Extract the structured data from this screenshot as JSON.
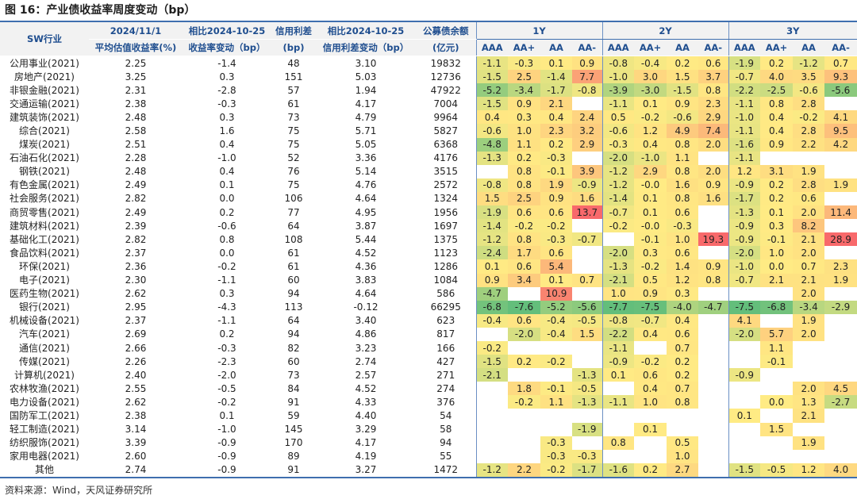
{
  "title": "图 16：产业债收益率周度变动（bp）",
  "source": "资料来源：Wind，天风证券研究所",
  "headers": {
    "sw": "SW行业",
    "date_top": "2024/11/1",
    "date_bottom": "平均估值收益率(%)",
    "chg_top": "相比2024-10-25",
    "chg_bottom": "收益率变动（bp）",
    "spread_top": "信用利差",
    "spread_bottom": "(bp)",
    "spreadchg_top": "相比2024-10-25",
    "spreadchg_bottom": "信用利差变动（bp）",
    "issue_top": "公募债余额",
    "issue_bottom": "(亿元)",
    "groups": [
      "1Y",
      "2Y",
      "3Y"
    ],
    "ratings": [
      "AAA",
      "AA+",
      "AA",
      "AA-"
    ]
  },
  "rows": [
    {
      "name": "公用事业(2021)",
      "yield": "2.25",
      "chg": "-1.4",
      "spread": "48",
      "spreadchg": "3.10",
      "bal": "19832",
      "y1": [
        "-1.1",
        "-0.3",
        "0.1",
        "0.9"
      ],
      "y2": [
        "-0.8",
        "-0.4",
        "0.2",
        "0.6"
      ],
      "y3": [
        "-1.9",
        "0.2",
        "-1.2",
        "0.7"
      ]
    },
    {
      "name": "房地产(2021)",
      "yield": "3.25",
      "chg": "0.3",
      "spread": "151",
      "spreadchg": "5.03",
      "bal": "12736",
      "y1": [
        "-1.5",
        "2.5",
        "-1.4",
        "7.7"
      ],
      "y2": [
        "-1.0",
        "3.0",
        "1.5",
        "3.7"
      ],
      "y3": [
        "-0.7",
        "4.0",
        "3.5",
        "9.3"
      ]
    },
    {
      "name": "非银金融(2021)",
      "yield": "2.31",
      "chg": "-2.8",
      "spread": "57",
      "spreadchg": "1.94",
      "bal": "47922",
      "y1": [
        "-5.2",
        "-3.4",
        "-1.7",
        "-0.8"
      ],
      "y2": [
        "-3.9",
        "-3.0",
        "-1.5",
        "0.8"
      ],
      "y3": [
        "-2.2",
        "-2.5",
        "-0.6",
        "-5.6"
      ]
    },
    {
      "name": "交通运输(2021)",
      "yield": "2.38",
      "chg": "-0.3",
      "spread": "61",
      "spreadchg": "4.17",
      "bal": "7004",
      "y1": [
        "-1.5",
        "0.9",
        "2.1",
        ""
      ],
      "y2": [
        "-1.1",
        "0.1",
        "0.9",
        "2.3"
      ],
      "y3": [
        "-1.1",
        "0.8",
        "2.8",
        ""
      ]
    },
    {
      "name": "建筑装饰(2021)",
      "yield": "2.48",
      "chg": "0.3",
      "spread": "73",
      "spreadchg": "4.79",
      "bal": "9964",
      "y1": [
        "0.4",
        "0.3",
        "0.4",
        "2.4"
      ],
      "y2": [
        "0.5",
        "-0.2",
        "-0.6",
        "2.9"
      ],
      "y3": [
        "-1.0",
        "0.4",
        "-0.2",
        "4.1"
      ]
    },
    {
      "name": "综合(2021)",
      "yield": "2.58",
      "chg": "1.6",
      "spread": "75",
      "spreadchg": "5.71",
      "bal": "5827",
      "y1": [
        "-0.6",
        "1.0",
        "2.3",
        "3.2"
      ],
      "y2": [
        "-0.6",
        "1.2",
        "4.9",
        "7.4"
      ],
      "y3": [
        "-1.1",
        "0.4",
        "2.8",
        "9.5"
      ]
    },
    {
      "name": "煤炭(2021)",
      "yield": "2.51",
      "chg": "0.4",
      "spread": "75",
      "spreadchg": "5.05",
      "bal": "6368",
      "y1": [
        "-4.8",
        "1.1",
        "0.2",
        "2.9"
      ],
      "y2": [
        "-0.3",
        "0.4",
        "0.8",
        "2.0"
      ],
      "y3": [
        "-1.6",
        "0.9",
        "2.2",
        "4.2"
      ]
    },
    {
      "name": "石油石化(2021)",
      "yield": "2.28",
      "chg": "-1.0",
      "spread": "52",
      "spreadchg": "3.36",
      "bal": "4176",
      "y1": [
        "-1.3",
        "0.2",
        "-0.3",
        ""
      ],
      "y2": [
        "-2.0",
        "-1.0",
        "1.1",
        ""
      ],
      "y3": [
        "-1.1",
        "",
        "",
        ""
      ]
    },
    {
      "name": "钢铁(2021)",
      "yield": "2.48",
      "chg": "0.4",
      "spread": "76",
      "spreadchg": "5.14",
      "bal": "3515",
      "y1": [
        "",
        "0.8",
        "-0.1",
        "3.9"
      ],
      "y2": [
        "-1.2",
        "2.9",
        "0.8",
        "2.0"
      ],
      "y3": [
        "1.2",
        "3.1",
        "1.9",
        ""
      ]
    },
    {
      "name": "有色金属(2021)",
      "yield": "2.49",
      "chg": "0.1",
      "spread": "75",
      "spreadchg": "4.76",
      "bal": "2572",
      "y1": [
        "-0.8",
        "0.8",
        "1.9",
        "-0.9"
      ],
      "y2": [
        "-1.2",
        "-0.0",
        "1.6",
        "0.9"
      ],
      "y3": [
        "-0.9",
        "0.2",
        "2.8",
        "1.9"
      ]
    },
    {
      "name": "社会服务(2021)",
      "yield": "2.82",
      "chg": "0.0",
      "spread": "106",
      "spreadchg": "4.64",
      "bal": "1324",
      "y1": [
        "1.5",
        "2.5",
        "0.9",
        "1.6"
      ],
      "y2": [
        "-1.4",
        "0.1",
        "0.8",
        "1.6"
      ],
      "y3": [
        "-1.7",
        "0.2",
        "0.6",
        ""
      ]
    },
    {
      "name": "商贸零售(2021)",
      "yield": "2.49",
      "chg": "0.2",
      "spread": "77",
      "spreadchg": "4.95",
      "bal": "1956",
      "y1": [
        "-1.9",
        "0.6",
        "0.6",
        "13.7"
      ],
      "y2": [
        "-0.7",
        "0.1",
        "0.6",
        ""
      ],
      "y3": [
        "-1.3",
        "0.1",
        "2.0",
        "11.4"
      ]
    },
    {
      "name": "建筑材料(2021)",
      "yield": "2.39",
      "chg": "-0.6",
      "spread": "64",
      "spreadchg": "3.87",
      "bal": "1697",
      "y1": [
        "-1.4",
        "-0.2",
        "-0.2",
        ""
      ],
      "y2": [
        "-0.2",
        "-0.0",
        "-0.3",
        ""
      ],
      "y3": [
        "-0.9",
        "0.3",
        "8.2",
        ""
      ]
    },
    {
      "name": "基础化工(2021)",
      "yield": "2.82",
      "chg": "0.8",
      "spread": "108",
      "spreadchg": "5.44",
      "bal": "1375",
      "y1": [
        "-1.2",
        "0.8",
        "-0.3",
        "-0.7"
      ],
      "y2": [
        "",
        "-0.1",
        "1.0",
        "19.3"
      ],
      "y3": [
        "-0.9",
        "-0.1",
        "2.1",
        "28.9"
      ]
    },
    {
      "name": "食品饮料(2021)",
      "yield": "2.37",
      "chg": "0.0",
      "spread": "61",
      "spreadchg": "4.52",
      "bal": "1123",
      "y1": [
        "-2.4",
        "1.7",
        "0.6",
        ""
      ],
      "y2": [
        "-2.0",
        "0.3",
        "0.6",
        ""
      ],
      "y3": [
        "-2.0",
        "1.0",
        "2.0",
        ""
      ]
    },
    {
      "name": "环保(2021)",
      "yield": "2.36",
      "chg": "-0.2",
      "spread": "61",
      "spreadchg": "4.36",
      "bal": "1286",
      "y1": [
        "0.1",
        "0.6",
        "5.4",
        ""
      ],
      "y2": [
        "-1.3",
        "-0.2",
        "1.4",
        "0.9"
      ],
      "y3": [
        "-1.0",
        "0.0",
        "0.7",
        "2.3"
      ]
    },
    {
      "name": "电子(2021)",
      "yield": "2.30",
      "chg": "-1.1",
      "spread": "60",
      "spreadchg": "3.83",
      "bal": "1084",
      "y1": [
        "0.9",
        "3.4",
        "0.1",
        "0.7"
      ],
      "y2": [
        "-2.1",
        "0.5",
        "1.2",
        "0.8"
      ],
      "y3": [
        "-0.7",
        "2.1",
        "2.1",
        "1.9"
      ]
    },
    {
      "name": "医药生物(2021)",
      "yield": "2.62",
      "chg": "0.3",
      "spread": "94",
      "spreadchg": "4.64",
      "bal": "586",
      "y1": [
        "-4.7",
        "",
        "10.9",
        ""
      ],
      "y2": [
        "1.0",
        "0.9",
        "0.3",
        ""
      ],
      "y3": [
        "",
        "",
        "2.0",
        ""
      ]
    },
    {
      "name": "银行(2021)",
      "yield": "2.95",
      "chg": "-4.3",
      "spread": "113",
      "spreadchg": "-0.12",
      "bal": "66295",
      "y1": [
        "-6.8",
        "-7.6",
        "-5.2",
        "-5.6"
      ],
      "y2": [
        "-7.7",
        "-7.5",
        "-4.0",
        "-4.7"
      ],
      "y3": [
        "-7.5",
        "-6.8",
        "-3.4",
        "-2.9"
      ]
    },
    {
      "name": "机械设备(2021)",
      "yield": "2.37",
      "chg": "-1.1",
      "spread": "64",
      "spreadchg": "3.40",
      "bal": "623",
      "y1": [
        "-0.4",
        "0.6",
        "-0.4",
        "-0.5"
      ],
      "y2": [
        "-0.8",
        "-0.7",
        "0.4",
        ""
      ],
      "y3": [
        "4.1",
        "",
        "1.9",
        ""
      ]
    },
    {
      "name": "汽车(2021)",
      "yield": "2.69",
      "chg": "0.2",
      "spread": "94",
      "spreadchg": "4.86",
      "bal": "817",
      "y1": [
        "",
        "-2.0",
        "-0.4",
        "1.5"
      ],
      "y2": [
        "-2.2",
        "0.4",
        "0.6",
        ""
      ],
      "y3": [
        "-2.0",
        "5.7",
        "2.0",
        ""
      ]
    },
    {
      "name": "通信(2021)",
      "yield": "2.66",
      "chg": "-0.3",
      "spread": "82",
      "spreadchg": "3.23",
      "bal": "166",
      "y1": [
        "-0.2",
        "",
        "",
        ""
      ],
      "y2": [
        "-1.1",
        "",
        "0.7",
        ""
      ],
      "y3": [
        "",
        "1.1",
        "",
        ""
      ]
    },
    {
      "name": "传媒(2021)",
      "yield": "2.26",
      "chg": "-2.3",
      "spread": "60",
      "spreadchg": "2.74",
      "bal": "427",
      "y1": [
        "-1.5",
        "0.2",
        "-0.2",
        ""
      ],
      "y2": [
        "-0.9",
        "-0.2",
        "0.2",
        ""
      ],
      "y3": [
        "",
        "-0.1",
        "",
        ""
      ]
    },
    {
      "name": "计算机(2021)",
      "yield": "2.40",
      "chg": "-2.0",
      "spread": "73",
      "spreadchg": "2.57",
      "bal": "271",
      "y1": [
        "-2.1",
        "",
        "",
        "-1.3"
      ],
      "y2": [
        "0.1",
        "0.6",
        "0.2",
        ""
      ],
      "y3": [
        "-0.9",
        "",
        "",
        ""
      ]
    },
    {
      "name": "农林牧渔(2021)",
      "yield": "2.55",
      "chg": "-0.5",
      "spread": "84",
      "spreadchg": "4.52",
      "bal": "274",
      "y1": [
        "",
        "1.8",
        "-0.1",
        "-0.5"
      ],
      "y2": [
        "",
        "0.4",
        "0.7",
        ""
      ],
      "y3": [
        "",
        "",
        "2.0",
        "4.5"
      ]
    },
    {
      "name": "电力设备(2021)",
      "yield": "2.62",
      "chg": "-0.2",
      "spread": "91",
      "spreadchg": "4.33",
      "bal": "376",
      "y1": [
        "",
        "-0.2",
        "1.1",
        "-1.3"
      ],
      "y2": [
        "-1.1",
        "1.0",
        "0.8",
        ""
      ],
      "y3": [
        "",
        "0.0",
        "1.3",
        "-2.7"
      ]
    },
    {
      "name": "国防军工(2021)",
      "yield": "2.38",
      "chg": "0.1",
      "spread": "59",
      "spreadchg": "4.40",
      "bal": "54",
      "y1": [
        "",
        "",
        "",
        ""
      ],
      "y2": [
        "",
        "",
        "",
        ""
      ],
      "y3": [
        "0.1",
        "",
        "2.1",
        ""
      ]
    },
    {
      "name": "轻工制造(2021)",
      "yield": "3.14",
      "chg": "-1.0",
      "spread": "145",
      "spreadchg": "3.29",
      "bal": "58",
      "y1": [
        "",
        "",
        "",
        "-1.9"
      ],
      "y2": [
        "",
        "0.1",
        "",
        ""
      ],
      "y3": [
        "",
        "1.5",
        "",
        ""
      ]
    },
    {
      "name": "纺织服饰(2021)",
      "yield": "3.39",
      "chg": "-0.9",
      "spread": "170",
      "spreadchg": "4.17",
      "bal": "94",
      "y1": [
        "",
        "",
        "-0.3",
        ""
      ],
      "y2": [
        "0.8",
        "",
        "0.5",
        ""
      ],
      "y3": [
        "",
        "",
        "1.9",
        ""
      ]
    },
    {
      "name": "家用电器(2021)",
      "yield": "2.60",
      "chg": "-0.9",
      "spread": "89",
      "spreadchg": "4.19",
      "bal": "55",
      "y1": [
        "",
        "",
        "-0.3",
        "-0.3"
      ],
      "y2": [
        "",
        "",
        "1.0",
        ""
      ],
      "y3": [
        "",
        "",
        "",
        ""
      ]
    },
    {
      "name": "其他",
      "yield": "2.74",
      "chg": "-0.9",
      "spread": "91",
      "spreadchg": "3.27",
      "bal": "1472",
      "y1": [
        "-1.2",
        "2.2",
        "-0.2",
        "-1.7"
      ],
      "y2": [
        "-1.6",
        "0.2",
        "2.7",
        ""
      ],
      "y3": [
        "-1.5",
        "-0.5",
        "1.2",
        "4.0"
      ]
    }
  ],
  "heat_colors": {
    "low": "#63be7b",
    "mid": "#ffeb84",
    "high": "#f8696b"
  }
}
